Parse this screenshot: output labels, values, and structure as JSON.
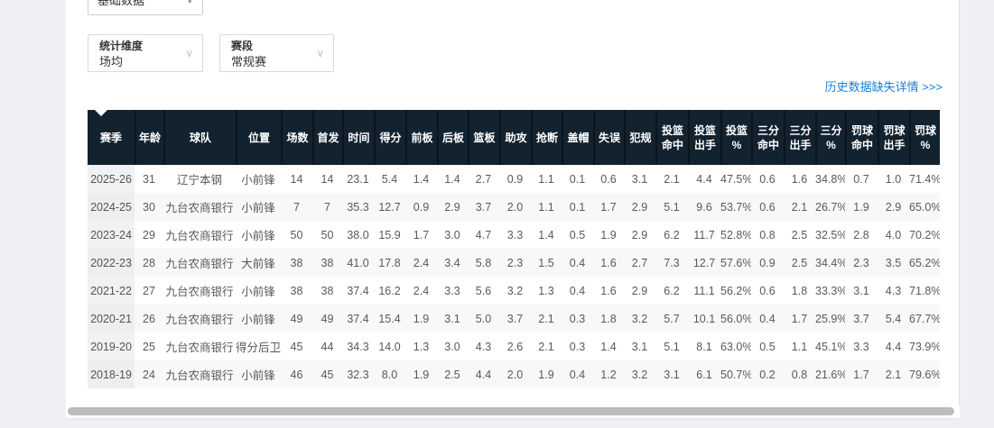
{
  "filters": {
    "data_type": {
      "value": "基础数据",
      "caret": "∨"
    },
    "dimension": {
      "label": "统计维度",
      "value": "场均",
      "caret": "∨"
    },
    "phase": {
      "label": "赛段",
      "value": "常规赛",
      "caret": "∨"
    }
  },
  "links": {
    "history_missing": "历史数据缺失详情 >>>"
  },
  "colors": {
    "header_bg": "#13222f",
    "link_blue": "#1b80d5",
    "page_bg": "#eef0f4",
    "stripe": "#f7f8fa"
  },
  "table": {
    "columns": [
      "赛季",
      "年龄",
      "球队",
      "位置",
      "场数",
      "首发",
      "时间",
      "得分",
      "前板",
      "后板",
      "篮板",
      "助攻",
      "抢断",
      "盖帽",
      "失误",
      "犯规",
      "投篮\n命中",
      "投篮\n出手",
      "投篮\n%",
      "三分\n命中",
      "三分\n出手",
      "三分\n%",
      "罚球\n命中",
      "罚球\n出手",
      "罚球\n%"
    ],
    "rows": [
      [
        "2025-26",
        "31",
        "辽宁本钢",
        "小前锋",
        "14",
        "14",
        "23.1",
        "5.4",
        "1.4",
        "1.4",
        "2.7",
        "0.9",
        "1.1",
        "0.1",
        "0.6",
        "3.1",
        "2.1",
        "4.4",
        "47.5%",
        "0.6",
        "1.6",
        "34.8%",
        "0.7",
        "1.0",
        "71.4%"
      ],
      [
        "2024-25",
        "30",
        "九台农商银行",
        "小前锋",
        "7",
        "7",
        "35.3",
        "12.7",
        "0.9",
        "2.9",
        "3.7",
        "2.0",
        "1.1",
        "0.1",
        "1.7",
        "2.9",
        "5.1",
        "9.6",
        "53.7%",
        "0.6",
        "2.1",
        "26.7%",
        "1.9",
        "2.9",
        "65.0%"
      ],
      [
        "2023-24",
        "29",
        "九台农商银行",
        "小前锋",
        "50",
        "50",
        "38.0",
        "15.9",
        "1.7",
        "3.0",
        "4.7",
        "3.3",
        "1.4",
        "0.5",
        "1.9",
        "2.9",
        "6.2",
        "11.7",
        "52.8%",
        "0.8",
        "2.5",
        "32.5%",
        "2.8",
        "4.0",
        "70.2%"
      ],
      [
        "2022-23",
        "28",
        "九台农商银行",
        "大前锋",
        "38",
        "38",
        "41.0",
        "17.8",
        "2.4",
        "3.4",
        "5.8",
        "2.3",
        "1.5",
        "0.4",
        "1.6",
        "2.7",
        "7.3",
        "12.7",
        "57.6%",
        "0.9",
        "2.5",
        "34.4%",
        "2.3",
        "3.5",
        "65.2%"
      ],
      [
        "2021-22",
        "27",
        "九台农商银行",
        "小前锋",
        "38",
        "38",
        "37.4",
        "16.2",
        "2.4",
        "3.3",
        "5.6",
        "3.2",
        "1.3",
        "0.4",
        "1.6",
        "2.9",
        "6.2",
        "11.1",
        "56.2%",
        "0.6",
        "1.8",
        "33.3%",
        "3.1",
        "4.3",
        "71.8%"
      ],
      [
        "2020-21",
        "26",
        "九台农商银行",
        "小前锋",
        "49",
        "49",
        "37.4",
        "15.4",
        "1.9",
        "3.1",
        "5.0",
        "3.7",
        "2.1",
        "0.3",
        "1.8",
        "3.2",
        "5.7",
        "10.1",
        "56.0%",
        "0.4",
        "1.7",
        "25.9%",
        "3.7",
        "5.4",
        "67.7%"
      ],
      [
        "2019-20",
        "25",
        "九台农商银行",
        "得分后卫",
        "45",
        "44",
        "34.3",
        "14.0",
        "1.3",
        "3.0",
        "4.3",
        "2.6",
        "2.1",
        "0.3",
        "1.4",
        "3.1",
        "5.1",
        "8.1",
        "63.0%",
        "0.5",
        "1.1",
        "45.1%",
        "3.3",
        "4.4",
        "73.9%"
      ],
      [
        "2018-19",
        "24",
        "九台农商银行",
        "小前锋",
        "46",
        "45",
        "32.3",
        "8.0",
        "1.9",
        "2.5",
        "4.4",
        "2.0",
        "1.9",
        "0.4",
        "1.2",
        "3.2",
        "3.1",
        "6.1",
        "50.7%",
        "0.2",
        "0.8",
        "21.6%",
        "1.7",
        "2.1",
        "79.6%"
      ]
    ]
  }
}
